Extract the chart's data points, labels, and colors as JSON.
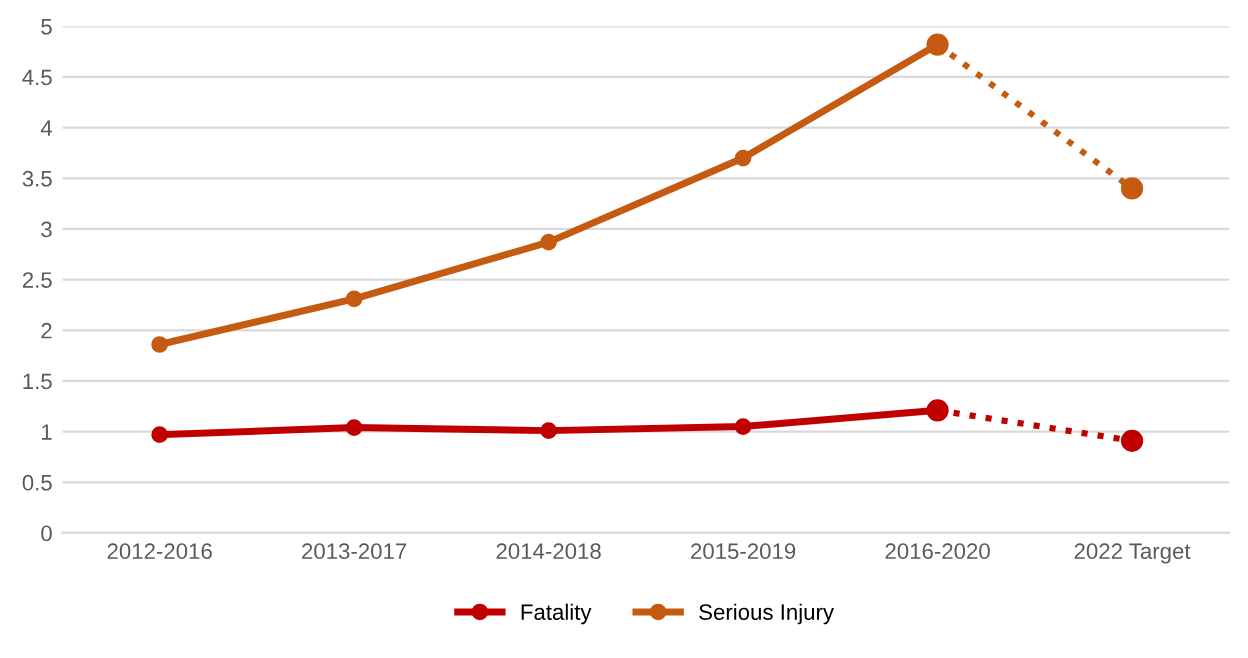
{
  "chart_data": {
    "type": "line",
    "categories": [
      "2012-2016",
      "2013-2017",
      "2014-2018",
      "2015-2019",
      "2016-2020",
      "2022 Target"
    ],
    "series": [
      {
        "name": "Fatality",
        "color": "#c00000",
        "values": [
          0.97,
          1.04,
          1.01,
          1.05,
          1.21,
          null
        ],
        "line_style": "solid"
      },
      {
        "name": "Serious Injury",
        "color": "#c55a11",
        "values": [
          1.86,
          2.31,
          2.87,
          3.7,
          4.82,
          null
        ],
        "line_style": "solid"
      },
      {
        "color": "#c00000",
        "values": [
          null,
          null,
          null,
          null,
          1.21,
          0.91
        ],
        "line_style": "dotted"
      },
      {
        "color": "#c55a11",
        "values": [
          null,
          null,
          null,
          null,
          4.82,
          3.4
        ],
        "line_style": "dotted"
      }
    ],
    "ylim": [
      0,
      5
    ],
    "yticks": [
      0,
      0.5,
      1,
      1.5,
      2,
      2.5,
      3,
      3.5,
      4,
      4.5,
      5
    ],
    "grid": "y",
    "legend": "bottom",
    "marker": "circle"
  }
}
